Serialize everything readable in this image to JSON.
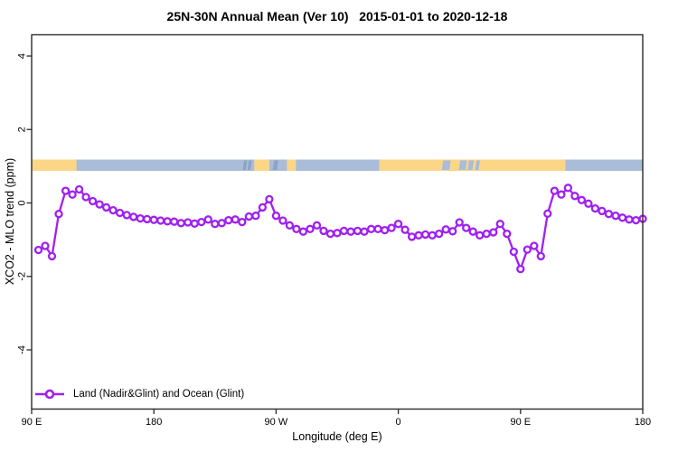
{
  "chart_data": {
    "type": "line",
    "title": "25N-30N Annual Mean (Ver 10)   2015-01-01 to 2020-12-18",
    "xlabel": "Longitude (deg E)",
    "ylabel": "XCO2 - MLO trend (ppm)",
    "x_range_deg": [
      90,
      540
    ],
    "x_ticks": [
      {
        "deg": 90,
        "label": "90 E"
      },
      {
        "deg": 180,
        "label": "180"
      },
      {
        "deg": 270,
        "label": "90 W"
      },
      {
        "deg": 360,
        "label": "0"
      },
      {
        "deg": 450,
        "label": "90 E"
      },
      {
        "deg": 540,
        "label": "180"
      }
    ],
    "y_ticks": [
      {
        "value": 4,
        "label": "4"
      },
      {
        "value": 2,
        "label": "2"
      },
      {
        "value": 0,
        "label": "0"
      },
      {
        "value": -2,
        "label": "-2"
      },
      {
        "value": -4,
        "label": "-4"
      }
    ],
    "ylim": [
      -5.6,
      4.6
    ],
    "grid": false,
    "legend_position": "bottom-left",
    "series": [
      {
        "name": "Land (Nadir&Glint) and Ocean (Glint)",
        "color": "#A020F0",
        "marker": "open-circle",
        "x_deg": [
          95,
          100,
          105,
          110,
          115,
          120,
          125,
          130,
          135,
          140,
          145,
          150,
          155,
          160,
          165,
          170,
          175,
          180,
          185,
          190,
          195,
          200,
          205,
          210,
          215,
          220,
          225,
          230,
          235,
          240,
          245,
          250,
          255,
          260,
          265,
          270,
          275,
          280,
          285,
          290,
          295,
          300,
          305,
          310,
          315,
          320,
          325,
          330,
          335,
          340,
          345,
          350,
          355,
          360,
          365,
          370,
          375,
          380,
          385,
          390,
          395,
          400,
          405,
          410,
          415,
          420,
          425,
          430,
          435,
          440,
          445,
          450,
          455,
          460,
          465,
          470,
          475,
          480,
          485,
          490,
          495,
          500,
          505,
          510,
          515,
          520,
          525,
          530,
          535,
          540
        ],
        "values": [
          -1.28,
          -1.17,
          -1.45,
          -0.3,
          0.33,
          0.23,
          0.37,
          0.16,
          0.05,
          -0.04,
          -0.12,
          -0.2,
          -0.27,
          -0.33,
          -0.38,
          -0.42,
          -0.44,
          -0.46,
          -0.48,
          -0.5,
          -0.51,
          -0.55,
          -0.53,
          -0.56,
          -0.52,
          -0.45,
          -0.57,
          -0.55,
          -0.47,
          -0.45,
          -0.52,
          -0.37,
          -0.35,
          -0.12,
          0.1,
          -0.35,
          -0.48,
          -0.61,
          -0.71,
          -0.78,
          -0.71,
          -0.61,
          -0.76,
          -0.84,
          -0.82,
          -0.76,
          -0.78,
          -0.76,
          -0.78,
          -0.71,
          -0.71,
          -0.74,
          -0.68,
          -0.57,
          -0.73,
          -0.92,
          -0.88,
          -0.86,
          -0.88,
          -0.84,
          -0.72,
          -0.77,
          -0.53,
          -0.68,
          -0.78,
          -0.88,
          -0.84,
          -0.8,
          -0.57,
          -0.84,
          -1.33,
          -1.8,
          -1.27,
          -1.17,
          -1.45,
          -0.29,
          0.33,
          0.23,
          0.41,
          0.19,
          0.08,
          -0.02,
          -0.15,
          -0.22,
          -0.3,
          -0.35,
          -0.4,
          -0.45,
          -0.47,
          -0.43
        ]
      }
    ],
    "map_band": {
      "note": "land/ocean strip at 25N-30N drawn near y = 1 ppm",
      "colors": {
        "land": "#FBD687",
        "ocean": "#A9BCD8",
        "ocean_dark": "#8CA3C6"
      },
      "segments": [
        {
          "from": 90,
          "to": 123,
          "surface": "land"
        },
        {
          "from": 123,
          "to": 254,
          "surface": "ocean"
        },
        {
          "from": 254,
          "to": 265,
          "surface": "land"
        },
        {
          "from": 265,
          "to": 278,
          "surface": "ocean"
        },
        {
          "from": 278,
          "to": 284.5,
          "surface": "land"
        },
        {
          "from": 284.5,
          "to": 346,
          "surface": "ocean"
        },
        {
          "from": 346,
          "to": 483,
          "surface": "land"
        },
        {
          "from": 483,
          "to": 540,
          "surface": "ocean"
        }
      ],
      "inlays": [
        {
          "from": 246,
          "to": 248,
          "surface": "ocean_dark"
        },
        {
          "from": 249.5,
          "to": 251.5,
          "surface": "ocean_dark"
        },
        {
          "from": 268,
          "to": 271,
          "surface": "ocean_dark"
        },
        {
          "from": 392.5,
          "to": 398,
          "surface": "ocean"
        },
        {
          "from": 405,
          "to": 410,
          "surface": "ocean"
        },
        {
          "from": 411.5,
          "to": 415,
          "surface": "ocean"
        },
        {
          "from": 417,
          "to": 419.5,
          "surface": "ocean"
        }
      ]
    },
    "frame_color": "#2b2b2b"
  }
}
